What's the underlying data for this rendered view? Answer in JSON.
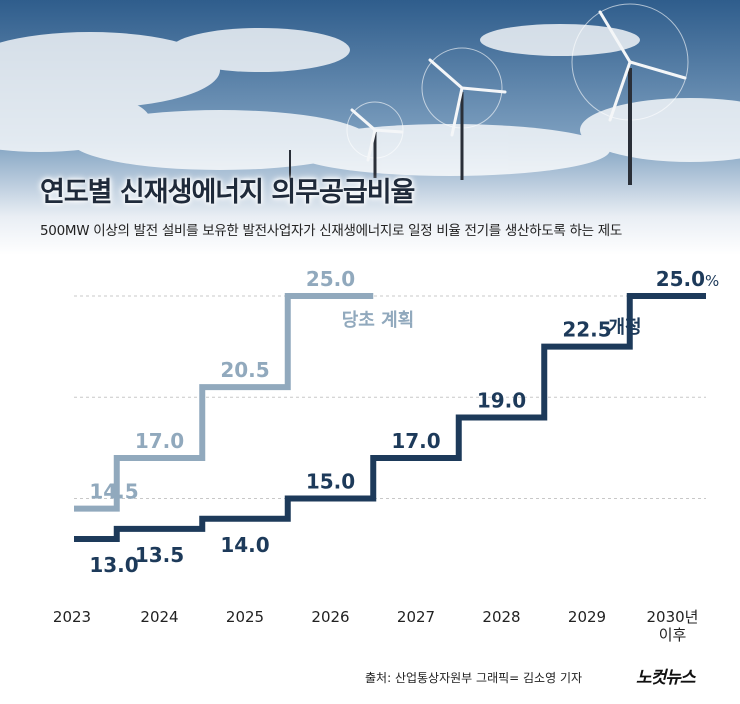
{
  "title": "연도별 신재생에너지 의무공급비율",
  "subtitle": "500MW 이상의 발전 설비를 보유한 발전사업자가 신재생에너지로 일정 비율 전기를 생산하도록 하는 제도",
  "footer": {
    "source": "출처: 산업통상자원부   그래픽= 김소영 기자",
    "logo": "노컷뉴스"
  },
  "colors": {
    "original": "#91a9bd",
    "revised": "#1d3a5a",
    "grid": "#c8c8c8",
    "axis_text": "#222222"
  },
  "chart_data": {
    "type": "line",
    "step": true,
    "categories": [
      "2023",
      "2024",
      "2025",
      "2026",
      "2027",
      "2028",
      "2029",
      "2030년\n이후"
    ],
    "series": [
      {
        "name": "당초 계획",
        "values": [
          14.5,
          17.0,
          20.5,
          25.0,
          null,
          null,
          null,
          null
        ],
        "labels": [
          "14.5",
          "17.0",
          "20.5",
          "25.0"
        ]
      },
      {
        "name": "개정",
        "values": [
          13.0,
          13.5,
          14.0,
          15.0,
          17.0,
          19.0,
          22.5,
          25.0
        ],
        "labels": [
          "13.0",
          "13.5",
          "14.0",
          "15.0",
          "17.0",
          "19.0",
          "22.5",
          "25.0"
        ]
      }
    ],
    "last_label_unit": "%",
    "grid": true
  }
}
